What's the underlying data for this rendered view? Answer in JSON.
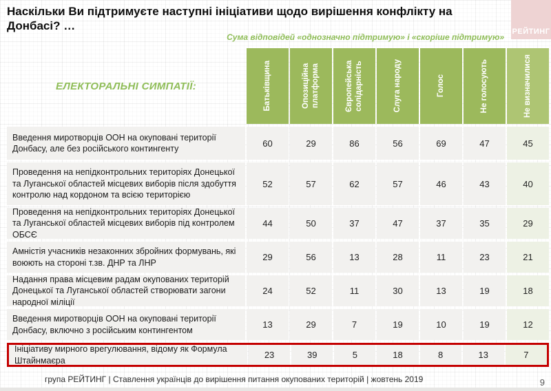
{
  "slide": {
    "title": "Наскільки Ви підтримуєте наступні ініціативи щодо вирішення конфлікту на Донбасі? …",
    "subtitle": "Сума відповідей «однозначно підтримую» і «скоріше підтримую»",
    "logo_text": "РЕЙТИНГ",
    "electoral_label": "ЕЛЕКТОРАЛЬНІ СИМПАТІЇ:",
    "footer": "група РЕЙТИНГ | Ставлення українців до вирішення питання окупованих територій  | жовтень  2019",
    "page_number": "9"
  },
  "colors": {
    "header_green": "#9cb95c",
    "header_green_light": "#aec573",
    "text_green": "#8fbd58",
    "cell_grey": "#f2f1ef",
    "cell_green_tint": "#edf1e4",
    "highlight_red": "#c40000",
    "logo_pink": "#eed3d3"
  },
  "chart_data": {
    "type": "table",
    "title": "Наскільки Ви підтримуєте наступні ініціативи щодо вирішення конфлікту на Донбасі?",
    "note": "Сума відповідей «однозначно підтримую» і «скоріше підтримую»",
    "columns": [
      "Батьківщина",
      "Опозиційна платформа",
      "Європейська солідарність",
      "Слуга народу",
      "Голос",
      "Не голосують",
      "Не визначилися"
    ],
    "rows": [
      {
        "label": "Введення миротворців ООН на окуповані території Донбасу, але без російського контингенту",
        "values": [
          60,
          29,
          86,
          56,
          69,
          47,
          45
        ],
        "highlighted": false
      },
      {
        "label": "Проведення на непідконтрольних територіях Донецької та Луганської областей місцевих виборів після здобуття контролю над кордоном та всією територією",
        "values": [
          52,
          57,
          62,
          57,
          46,
          43,
          40
        ],
        "highlighted": false
      },
      {
        "label": "Проведення на непідконтрольних територіях Донецької та Луганської областей місцевих виборів під контролем ОБСЄ",
        "values": [
          44,
          50,
          37,
          47,
          37,
          35,
          29
        ],
        "highlighted": false
      },
      {
        "label": "Амністія учасників незаконних збройних формувань, які воюють на стороні т.зв. ДНР та ЛНР",
        "values": [
          29,
          56,
          13,
          28,
          11,
          23,
          21
        ],
        "highlighted": false
      },
      {
        "label": "Надання права місцевим радам окупованих територій Донецької та Луганської областей створювати загони народної міліції",
        "values": [
          24,
          52,
          11,
          30,
          13,
          19,
          18
        ],
        "highlighted": false
      },
      {
        "label": "Введення миротворців ООН на окуповані території Донбасу, включно з російським контингентом",
        "values": [
          13,
          29,
          7,
          19,
          10,
          19,
          12
        ],
        "highlighted": false
      },
      {
        "label": "Ініціативу мирного врегулювання, відому як Формула Штайнмаєра",
        "values": [
          23,
          39,
          5,
          18,
          8,
          13,
          7
        ],
        "highlighted": true
      }
    ]
  }
}
